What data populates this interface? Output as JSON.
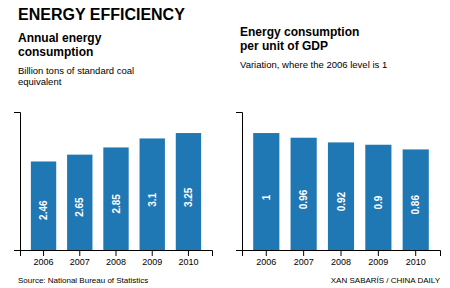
{
  "title": "ENERGY EFFICIENCY",
  "chart_data": [
    {
      "type": "bar",
      "title": "Annual energy\nconsumption",
      "subtitle": "Billion tons of standard coal\nequivalent",
      "source": "Source: National Bureau of Statistics",
      "categories": [
        "2006",
        "2007",
        "2008",
        "2009",
        "2010"
      ],
      "values": [
        2.46,
        2.65,
        2.85,
        3.1,
        3.25
      ],
      "ylim": [
        0,
        3.835
      ],
      "data_labels": true,
      "tick_labels": "x",
      "grid": false
    },
    {
      "type": "bar",
      "title": "Energy consumption\nper unit of GDP",
      "subtitle": "Variation, where the 2006 level is 1",
      "source": "XAN SABARÍS / CHINA DAILY",
      "categories": [
        "2006",
        "2007",
        "2008",
        "2009",
        "2010"
      ],
      "values": [
        1.0,
        0.96,
        0.92,
        0.9,
        0.86
      ],
      "ylim": [
        0,
        1.18
      ],
      "data_labels": true,
      "tick_labels": "x",
      "grid": false
    }
  ]
}
